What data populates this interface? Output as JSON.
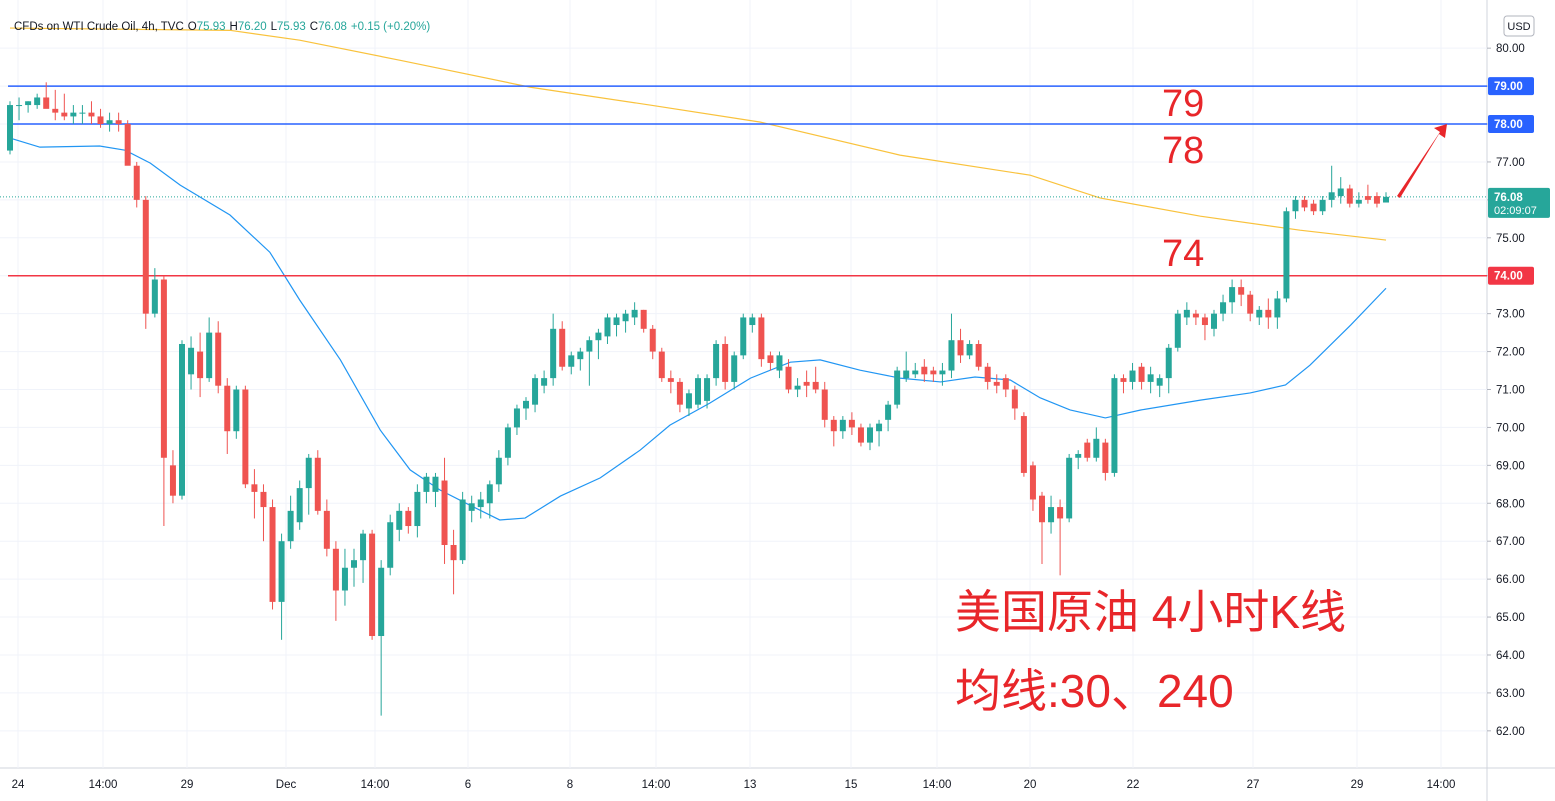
{
  "chart_data": {
    "type": "candlestick",
    "title": "CFDs on WTI Crude Oil, 4h, TVC",
    "ohlc_legend": [
      {
        "label": "O",
        "value": "75.93"
      },
      {
        "label": "H",
        "value": "76.20"
      },
      {
        "label": "L",
        "value": "75.93"
      },
      {
        "label": "C",
        "value": "76.08"
      }
    ],
    "change": "+0.15 (+0.20%)",
    "currency": "USD",
    "up_color": "#26a69a",
    "down_color": "#ef5350",
    "ylim": [
      61.02,
      81.27
    ],
    "yticks": [
      {
        "value": 62,
        "label": "62.00"
      },
      {
        "value": 63,
        "label": "63.00"
      },
      {
        "value": 64,
        "label": "64.00"
      },
      {
        "value": 65,
        "label": "65.00"
      },
      {
        "value": 66,
        "label": "66.00"
      },
      {
        "value": 67,
        "label": "67.00"
      },
      {
        "value": 68,
        "label": "68.00"
      },
      {
        "value": 69,
        "label": "69.00"
      },
      {
        "value": 70,
        "label": "70.00"
      },
      {
        "value": 71,
        "label": "71.00"
      },
      {
        "value": 72,
        "label": "72.00"
      },
      {
        "value": 73,
        "label": "73.00"
      },
      {
        "value": 74,
        "label": "74.00"
      },
      {
        "value": 75,
        "label": "75.00"
      },
      {
        "value": 76,
        "label": "76.00"
      },
      {
        "value": 77,
        "label": "77.00"
      },
      {
        "value": 78,
        "label": "78.00"
      },
      {
        "value": 79,
        "label": "79.00"
      },
      {
        "value": 80,
        "label": "80.00"
      }
    ],
    "x_labels": [
      "24",
      "14:00",
      "29",
      "Dec",
      "14:00",
      "6",
      "8",
      "14:00",
      "13",
      "15",
      "14:00",
      "20",
      "22",
      "27",
      "29",
      "14:00"
    ],
    "candles": [
      [
        77.3,
        78.6,
        77.2,
        78.5
      ],
      [
        78.5,
        78.7,
        78.1,
        78.5
      ],
      [
        78.5,
        78.6,
        78.3,
        78.6
      ],
      [
        78.5,
        78.8,
        78.4,
        78.7
      ],
      [
        78.7,
        79.1,
        78.5,
        78.4
      ],
      [
        78.4,
        78.9,
        78.1,
        78.3
      ],
      [
        78.3,
        78.8,
        78.1,
        78.2
      ],
      [
        78.2,
        78.5,
        78.0,
        78.3
      ],
      [
        78.3,
        78.5,
        78.0,
        78.3
      ],
      [
        78.3,
        78.6,
        78.0,
        78.2
      ],
      [
        78.2,
        78.4,
        77.9,
        78.0
      ],
      [
        78.0,
        78.3,
        77.8,
        78.1
      ],
      [
        78.1,
        78.3,
        77.8,
        78.0
      ],
      [
        78.0,
        78.1,
        77.0,
        76.9
      ],
      [
        76.9,
        77.0,
        75.8,
        76.0
      ],
      [
        76.0,
        76.1,
        72.6,
        73.0
      ],
      [
        73.0,
        74.2,
        72.9,
        73.9
      ],
      [
        73.9,
        74.0,
        67.4,
        69.2
      ],
      [
        69.0,
        69.4,
        68.0,
        68.2
      ],
      [
        68.2,
        72.3,
        68.1,
        72.2
      ],
      [
        71.4,
        72.4,
        71.0,
        72.1
      ],
      [
        72.0,
        72.5,
        70.8,
        71.3
      ],
      [
        71.3,
        72.9,
        71.2,
        72.5
      ],
      [
        72.5,
        72.8,
        70.9,
        71.1
      ],
      [
        71.1,
        71.3,
        69.3,
        69.9
      ],
      [
        69.9,
        71.1,
        69.7,
        71.0
      ],
      [
        71.0,
        71.1,
        68.4,
        68.5
      ],
      [
        68.5,
        68.9,
        67.6,
        68.3
      ],
      [
        68.3,
        68.5,
        67.0,
        67.9
      ],
      [
        67.9,
        68.1,
        65.2,
        65.4
      ],
      [
        65.4,
        67.2,
        64.4,
        67.0
      ],
      [
        67.0,
        68.2,
        66.8,
        67.8
      ],
      [
        67.5,
        68.6,
        67.3,
        68.4
      ],
      [
        68.4,
        69.3,
        67.7,
        69.2
      ],
      [
        69.2,
        69.4,
        67.7,
        67.8
      ],
      [
        67.8,
        68.1,
        66.6,
        66.8
      ],
      [
        66.8,
        67.0,
        64.9,
        65.7
      ],
      [
        65.7,
        66.8,
        65.3,
        66.3
      ],
      [
        66.3,
        66.8,
        65.8,
        66.5
      ],
      [
        66.5,
        67.3,
        65.9,
        67.2
      ],
      [
        67.2,
        67.3,
        64.4,
        64.5
      ],
      [
        64.5,
        66.5,
        62.4,
        66.3
      ],
      [
        66.3,
        67.7,
        66.1,
        67.5
      ],
      [
        67.3,
        68.0,
        67.0,
        67.8
      ],
      [
        67.8,
        67.9,
        67.2,
        67.4
      ],
      [
        67.4,
        68.5,
        67.1,
        68.3
      ],
      [
        68.3,
        68.8,
        68.0,
        68.7
      ],
      [
        68.3,
        68.8,
        67.9,
        68.7
      ],
      [
        68.6,
        69.2,
        66.4,
        66.9
      ],
      [
        66.9,
        67.3,
        65.6,
        66.5
      ],
      [
        66.5,
        68.3,
        66.4,
        68.1
      ],
      [
        67.8,
        68.2,
        67.5,
        68.0
      ],
      [
        67.9,
        68.3,
        67.6,
        68.1
      ],
      [
        68.0,
        68.6,
        67.6,
        68.5
      ],
      [
        68.5,
        69.4,
        68.3,
        69.2
      ],
      [
        69.2,
        70.1,
        69.0,
        70.0
      ],
      [
        70.0,
        70.6,
        69.8,
        70.5
      ],
      [
        70.5,
        70.8,
        70.2,
        70.7
      ],
      [
        70.6,
        71.4,
        70.4,
        71.3
      ],
      [
        71.1,
        71.5,
        70.9,
        71.3
      ],
      [
        71.3,
        73.0,
        71.1,
        72.6
      ],
      [
        72.6,
        72.8,
        71.5,
        71.6
      ],
      [
        71.6,
        72.0,
        71.4,
        71.9
      ],
      [
        71.8,
        72.1,
        71.5,
        72.0
      ],
      [
        72.0,
        72.4,
        71.1,
        72.3
      ],
      [
        72.3,
        72.6,
        71.8,
        72.5
      ],
      [
        72.4,
        73.0,
        72.2,
        72.9
      ],
      [
        72.7,
        73.0,
        72.4,
        72.9
      ],
      [
        72.8,
        73.1,
        72.5,
        73.0
      ],
      [
        72.9,
        73.3,
        72.7,
        73.1
      ],
      [
        73.1,
        73.1,
        72.5,
        72.6
      ],
      [
        72.6,
        72.7,
        71.8,
        72.0
      ],
      [
        72.0,
        72.1,
        71.2,
        71.3
      ],
      [
        71.3,
        71.5,
        70.9,
        71.2
      ],
      [
        71.2,
        71.3,
        70.4,
        70.6
      ],
      [
        70.5,
        71.0,
        70.3,
        70.9
      ],
      [
        70.6,
        71.4,
        70.5,
        71.3
      ],
      [
        70.7,
        71.4,
        70.5,
        71.3
      ],
      [
        71.3,
        72.3,
        71.1,
        72.2
      ],
      [
        72.2,
        72.4,
        71.0,
        71.2
      ],
      [
        71.2,
        72.0,
        71.0,
        71.9
      ],
      [
        71.9,
        73.0,
        71.8,
        72.9
      ],
      [
        72.7,
        73.0,
        72.5,
        72.9
      ],
      [
        72.9,
        73.0,
        71.6,
        71.8
      ],
      [
        71.9,
        72.0,
        71.5,
        71.7
      ],
      [
        71.5,
        72.0,
        71.3,
        71.9
      ],
      [
        71.6,
        71.8,
        70.9,
        71.0
      ],
      [
        71.0,
        71.3,
        70.8,
        71.1
      ],
      [
        71.2,
        71.5,
        70.8,
        71.1
      ],
      [
        71.2,
        71.6,
        70.9,
        71.0
      ],
      [
        71.0,
        71.2,
        70.0,
        70.2
      ],
      [
        70.2,
        70.3,
        69.5,
        69.9
      ],
      [
        69.9,
        70.3,
        69.7,
        70.2
      ],
      [
        70.2,
        70.4,
        69.8,
        70.0
      ],
      [
        70.0,
        70.1,
        69.5,
        69.6
      ],
      [
        69.6,
        70.1,
        69.4,
        70.0
      ],
      [
        69.9,
        70.2,
        69.5,
        70.1
      ],
      [
        70.2,
        70.7,
        69.9,
        70.6
      ],
      [
        70.6,
        71.6,
        70.5,
        71.5
      ],
      [
        71.3,
        72.0,
        71.2,
        71.5
      ],
      [
        71.4,
        71.7,
        71.3,
        71.5
      ],
      [
        71.6,
        71.8,
        71.2,
        71.4
      ],
      [
        71.5,
        71.6,
        71.2,
        71.4
      ],
      [
        71.4,
        71.7,
        71.1,
        71.5
      ],
      [
        71.5,
        73.0,
        71.3,
        72.3
      ],
      [
        72.3,
        72.6,
        71.7,
        71.9
      ],
      [
        71.9,
        72.3,
        71.8,
        72.2
      ],
      [
        72.2,
        72.3,
        71.5,
        71.6
      ],
      [
        71.6,
        71.7,
        71.0,
        71.2
      ],
      [
        71.2,
        71.4,
        70.9,
        71.1
      ],
      [
        71.3,
        71.4,
        70.8,
        71.0
      ],
      [
        71.0,
        71.1,
        70.2,
        70.5
      ],
      [
        70.3,
        70.4,
        68.7,
        68.8
      ],
      [
        69.0,
        69.1,
        67.8,
        68.1
      ],
      [
        68.2,
        68.3,
        66.4,
        67.5
      ],
      [
        67.5,
        68.2,
        67.2,
        67.9
      ],
      [
        67.9,
        68.1,
        66.1,
        67.6
      ],
      [
        67.6,
        69.3,
        67.5,
        69.2
      ],
      [
        69.2,
        69.4,
        68.9,
        69.3
      ],
      [
        69.6,
        69.7,
        69.1,
        69.2
      ],
      [
        69.2,
        70.0,
        69.1,
        69.7
      ],
      [
        69.6,
        69.7,
        68.6,
        68.8
      ],
      [
        68.8,
        71.4,
        68.7,
        71.3
      ],
      [
        71.3,
        71.4,
        70.9,
        71.2
      ],
      [
        71.2,
        71.7,
        71.0,
        71.5
      ],
      [
        71.6,
        71.7,
        71.0,
        71.2
      ],
      [
        71.2,
        71.6,
        70.9,
        71.4
      ],
      [
        71.1,
        71.4,
        70.8,
        71.3
      ],
      [
        71.3,
        72.2,
        70.9,
        72.1
      ],
      [
        72.1,
        73.1,
        72.0,
        73.0
      ],
      [
        72.9,
        73.3,
        72.7,
        73.1
      ],
      [
        73.0,
        73.1,
        72.7,
        72.9
      ],
      [
        72.9,
        73.0,
        72.3,
        72.7
      ],
      [
        72.6,
        73.1,
        72.4,
        73.0
      ],
      [
        73.0,
        73.5,
        72.8,
        73.3
      ],
      [
        73.3,
        73.9,
        73.0,
        73.7
      ],
      [
        73.7,
        73.9,
        73.2,
        73.5
      ],
      [
        73.5,
        73.6,
        72.8,
        73.0
      ],
      [
        72.9,
        73.2,
        72.7,
        73.1
      ],
      [
        73.1,
        73.4,
        72.6,
        72.9
      ],
      [
        72.9,
        73.6,
        72.6,
        73.4
      ],
      [
        73.4,
        75.8,
        73.3,
        75.7
      ],
      [
        75.7,
        76.1,
        75.5,
        76.0
      ],
      [
        76.0,
        76.1,
        75.7,
        75.8
      ],
      [
        75.9,
        76.0,
        75.6,
        75.7
      ],
      [
        75.7,
        76.1,
        75.6,
        76.0
      ],
      [
        76.0,
        76.9,
        75.8,
        76.2
      ],
      [
        76.1,
        76.6,
        75.9,
        76.3
      ],
      [
        76.3,
        76.4,
        75.8,
        75.9
      ],
      [
        75.9,
        76.2,
        75.8,
        76.0
      ],
      [
        76.1,
        76.4,
        75.9,
        76.0
      ],
      [
        76.1,
        76.2,
        75.8,
        75.9
      ],
      [
        75.93,
        76.2,
        75.93,
        76.08
      ]
    ],
    "series": [
      {
        "color": "#2196f3",
        "x": [
          0,
          3.3,
          9.9,
          12.7,
          15.5,
          18.8,
          24.3,
          28.7,
          32.0,
          36.5,
          40.9,
          44.2,
          47.5,
          50.8,
          54.1,
          56.9,
          60.8,
          65.2,
          69.6,
          72.9,
          77.3,
          81.8,
          86.2,
          89.5,
          93.9,
          98.3,
          102.8,
          106.6,
          110.5,
          113.8,
          117.1,
          121.0,
          124.9,
          131.5,
          137.0,
          140.9,
          143.6,
          148.1,
          152
        ],
        "values": [
          77.63,
          77.39,
          77.42,
          77.31,
          76.97,
          76.39,
          75.6,
          74.62,
          73.36,
          71.78,
          69.93,
          68.88,
          68.35,
          67.95,
          67.56,
          67.61,
          68.19,
          68.67,
          69.4,
          70.06,
          70.64,
          71.3,
          71.72,
          71.78,
          71.51,
          71.3,
          71.2,
          71.33,
          71.25,
          70.78,
          70.46,
          70.25,
          70.46,
          70.72,
          70.91,
          71.12,
          71.64,
          72.7,
          73.67
        ]
      },
      {
        "color": "#f9c23c",
        "x": [
          0,
          24.3,
          32.0,
          43.1,
          57.5,
          70.7,
          82.9,
          98.3,
          112.7,
          120.4,
          131.5,
          142.5,
          152
        ],
        "values": [
          80.53,
          80.47,
          80.21,
          79.68,
          78.97,
          78.5,
          78.05,
          77.18,
          76.65,
          76.05,
          75.57,
          75.2,
          74.94
        ]
      }
    ],
    "levels": [
      {
        "value": 79,
        "label": "79.00",
        "color": "#2962ff"
      },
      {
        "value": 78,
        "label": "78.00",
        "color": "#2962ff"
      },
      {
        "value": 74,
        "label": "74.00",
        "color": "#f23645"
      }
    ],
    "last_price": {
      "value": 76.08,
      "label": "76.08",
      "countdown": "02:09:07",
      "color": "#26a69a"
    },
    "annotations": [
      "79",
      "78",
      "74",
      "美国原油 4小时K线",
      "均线:30、240"
    ]
  }
}
